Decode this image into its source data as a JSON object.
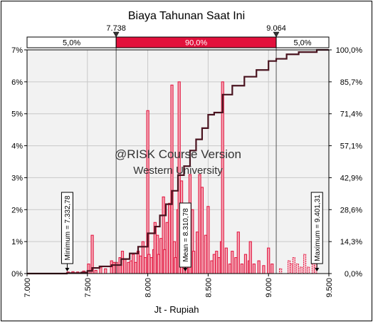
{
  "chart_data": {
    "type": "bar",
    "title": "Biaya Tahunan Saat Ini",
    "xlabel": "Jt - Rupiah",
    "x_range": [
      7000,
      9500
    ],
    "y_left_range": [
      0,
      7
    ],
    "y_right_range": [
      0,
      100
    ],
    "x_ticks": [
      "7.000",
      "7.500",
      "8.000",
      "8.500",
      "9.000",
      "9.500"
    ],
    "x_tick_values": [
      7000,
      7500,
      8000,
      8500,
      9000,
      9500
    ],
    "y_left_ticks": [
      "0%",
      "1%",
      "2%",
      "3%",
      "4%",
      "5%",
      "6%",
      "7%"
    ],
    "y_left_tick_values": [
      0,
      1,
      2,
      3,
      4,
      5,
      6,
      7
    ],
    "y_right_ticks": [
      "0,0%",
      "14,3%",
      "28,6%",
      "42,9%",
      "57,1%",
      "71,4%",
      "85,7%",
      "100,0%"
    ],
    "y_right_tick_values": [
      0,
      14.2857,
      28.5714,
      42.8571,
      57.1429,
      71.4286,
      85.7143,
      100
    ],
    "grid": true,
    "delimiters": {
      "left_value": 7738,
      "right_value": 9064,
      "left_label": "7.738",
      "right_label": "9.064",
      "band_left": "5,0%",
      "band_mid": "90,0%",
      "band_right": "5,0%"
    },
    "markers": [
      {
        "label": "Minimum = 7.332,78",
        "x": 7332.78
      },
      {
        "label": "Mean = 8.310,78",
        "x": 8310.78
      },
      {
        "label": "Maximum = 9.401,31",
        "x": 9401.31
      }
    ],
    "watermark": {
      "line1": "@RISK Course Version",
      "line2": "Western University"
    },
    "colors": {
      "bar": "#e2113c",
      "bar_fill": "#f4a6b4",
      "cumulative": "#4a1420",
      "band_mid": "#e2113c",
      "grid": "#c8c8c8",
      "plot_bg": "#f2f2f2"
    },
    "bars": [
      {
        "x": 7340,
        "y": 0.05
      },
      {
        "x": 7380,
        "y": 0.06
      },
      {
        "x": 7420,
        "y": 0.05
      },
      {
        "x": 7470,
        "y": 0.08
      },
      {
        "x": 7510,
        "y": 0.3
      },
      {
        "x": 7540,
        "y": 1.2
      },
      {
        "x": 7570,
        "y": 0.1
      },
      {
        "x": 7610,
        "y": 0.2
      },
      {
        "x": 7650,
        "y": 0.15
      },
      {
        "x": 7700,
        "y": 0.4
      },
      {
        "x": 7720,
        "y": 0.35
      },
      {
        "x": 7740,
        "y": 0.35
      },
      {
        "x": 7770,
        "y": 0.5
      },
      {
        "x": 7790,
        "y": 0.7
      },
      {
        "x": 7810,
        "y": 0.45
      },
      {
        "x": 7840,
        "y": 0.35
      },
      {
        "x": 7860,
        "y": 0.4
      },
      {
        "x": 7880,
        "y": 0.6
      },
      {
        "x": 7900,
        "y": 0.35
      },
      {
        "x": 7920,
        "y": 0.7
      },
      {
        "x": 7940,
        "y": 0.55
      },
      {
        "x": 7960,
        "y": 1.0
      },
      {
        "x": 7980,
        "y": 0.5
      },
      {
        "x": 8000,
        "y": 5.1
      },
      {
        "x": 8010,
        "y": 0.6
      },
      {
        "x": 8030,
        "y": 0.5
      },
      {
        "x": 8050,
        "y": 0.75
      },
      {
        "x": 8060,
        "y": 1.6
      },
      {
        "x": 8080,
        "y": 1.2
      },
      {
        "x": 8090,
        "y": 0.6
      },
      {
        "x": 8110,
        "y": 1.1
      },
      {
        "x": 8130,
        "y": 2.4
      },
      {
        "x": 8140,
        "y": 0.75
      },
      {
        "x": 8160,
        "y": 1.6
      },
      {
        "x": 8180,
        "y": 2.2
      },
      {
        "x": 8200,
        "y": 5.9
      },
      {
        "x": 8220,
        "y": 1.0
      },
      {
        "x": 8230,
        "y": 0.5
      },
      {
        "x": 8250,
        "y": 2.0
      },
      {
        "x": 8260,
        "y": 6.0
      },
      {
        "x": 8280,
        "y": 2.9
      },
      {
        "x": 8300,
        "y": 0.9
      },
      {
        "x": 8320,
        "y": 1.4
      },
      {
        "x": 8340,
        "y": 0.75
      },
      {
        "x": 8350,
        "y": 3.1
      },
      {
        "x": 8370,
        "y": 2.0
      },
      {
        "x": 8380,
        "y": 0.7
      },
      {
        "x": 8410,
        "y": 1.3
      },
      {
        "x": 8430,
        "y": 3.1
      },
      {
        "x": 8450,
        "y": 2.7
      },
      {
        "x": 8480,
        "y": 1.2
      },
      {
        "x": 8500,
        "y": 2.1
      },
      {
        "x": 8530,
        "y": 0.4
      },
      {
        "x": 8550,
        "y": 0.6
      },
      {
        "x": 8570,
        "y": 0.7
      },
      {
        "x": 8590,
        "y": 0.5
      },
      {
        "x": 8610,
        "y": 1.0
      },
      {
        "x": 8620,
        "y": 6.0
      },
      {
        "x": 8650,
        "y": 0.8
      },
      {
        "x": 8680,
        "y": 0.3
      },
      {
        "x": 8700,
        "y": 0.7
      },
      {
        "x": 8730,
        "y": 0.5
      },
      {
        "x": 8750,
        "y": 1.3
      },
      {
        "x": 8780,
        "y": 0.3
      },
      {
        "x": 8810,
        "y": 0.6
      },
      {
        "x": 8840,
        "y": 0.4
      },
      {
        "x": 8850,
        "y": 1.0
      },
      {
        "x": 8880,
        "y": 0.3
      },
      {
        "x": 8920,
        "y": 0.4
      },
      {
        "x": 8960,
        "y": 0.25
      },
      {
        "x": 9000,
        "y": 0.8
      },
      {
        "x": 9030,
        "y": 0.3
      }
    ],
    "tail_bars": [
      {
        "x": 9100,
        "y": 0.15
      },
      {
        "x": 9170,
        "y": 0.4
      },
      {
        "x": 9190,
        "y": 0.3
      },
      {
        "x": 9210,
        "y": 0.5
      },
      {
        "x": 9240,
        "y": 0.3
      },
      {
        "x": 9270,
        "y": 0.2
      },
      {
        "x": 9300,
        "y": 0.6
      },
      {
        "x": 9330,
        "y": 0.2
      },
      {
        "x": 9370,
        "y": 0.8
      },
      {
        "x": 9390,
        "y": 0.5
      }
    ],
    "cumulative": [
      [
        7000,
        0
      ],
      [
        7330,
        0.2
      ],
      [
        7450,
        0.5
      ],
      [
        7500,
        1.2
      ],
      [
        7540,
        2.5
      ],
      [
        7600,
        3.2
      ],
      [
        7700,
        3.8
      ],
      [
        7780,
        6.5
      ],
      [
        7850,
        9
      ],
      [
        7920,
        12
      ],
      [
        8000,
        18
      ],
      [
        8060,
        21
      ],
      [
        8100,
        26
      ],
      [
        8150,
        31
      ],
      [
        8200,
        37
      ],
      [
        8250,
        44
      ],
      [
        8300,
        48
      ],
      [
        8350,
        55
      ],
      [
        8400,
        60
      ],
      [
        8450,
        65
      ],
      [
        8500,
        71
      ],
      [
        8550,
        72
      ],
      [
        8620,
        80
      ],
      [
        8700,
        84
      ],
      [
        8800,
        88
      ],
      [
        8900,
        91
      ],
      [
        9000,
        95
      ],
      [
        9064,
        96
      ],
      [
        9150,
        98
      ],
      [
        9250,
        99
      ],
      [
        9400,
        100
      ],
      [
        9500,
        100
      ]
    ]
  }
}
